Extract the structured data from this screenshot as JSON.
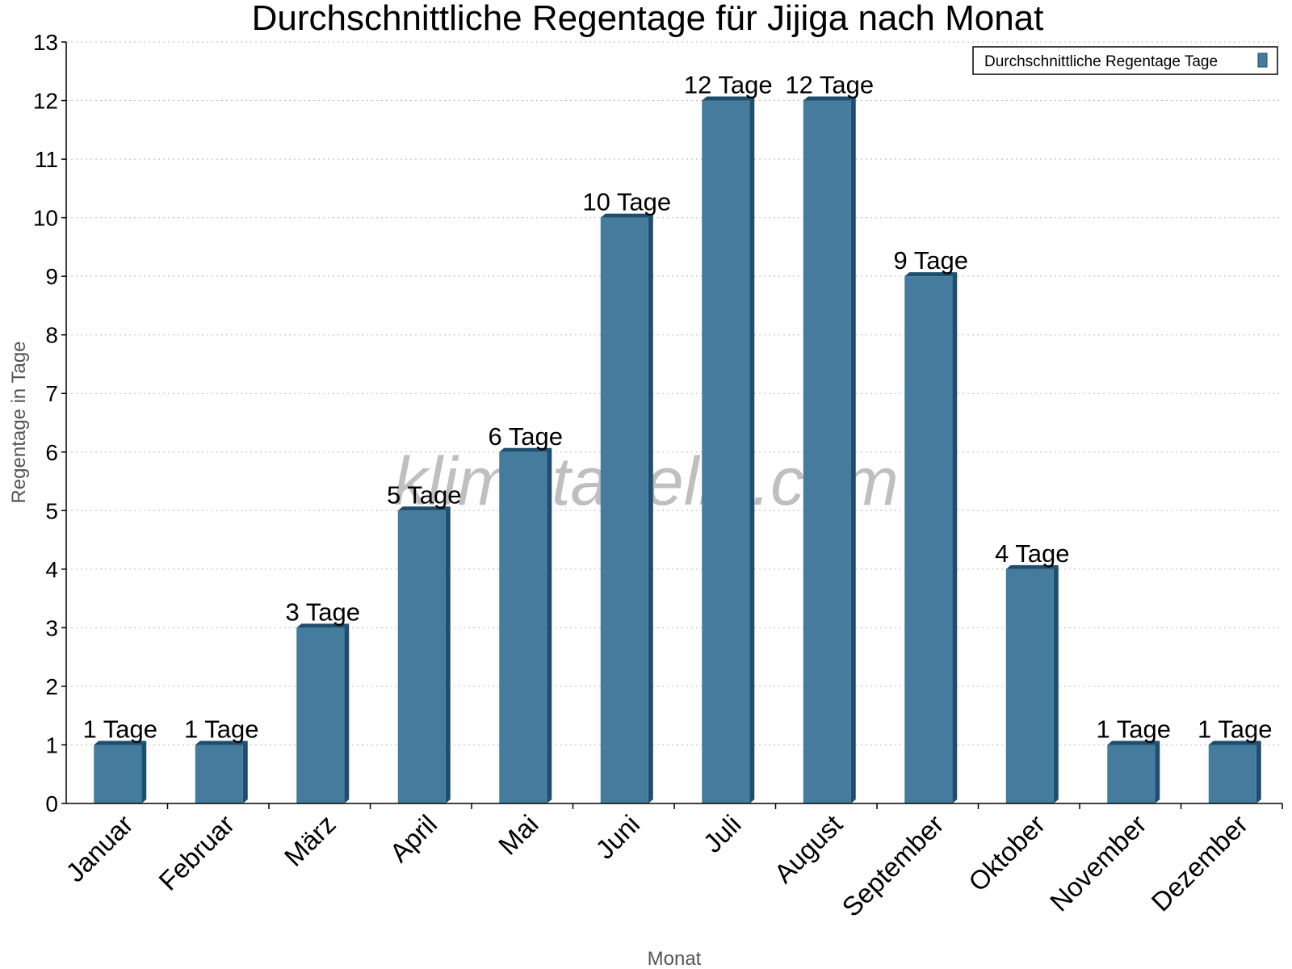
{
  "chart_data": {
    "type": "bar",
    "title": "Durchschnittliche Regentage für Jijiga nach Monat",
    "xlabel": "Monat",
    "ylabel": "Regentage in Tage",
    "categories": [
      "Januar",
      "Februar",
      "März",
      "April",
      "Mai",
      "Juni",
      "Juli",
      "August",
      "September",
      "Oktober",
      "November",
      "Dezember"
    ],
    "series": [
      {
        "name": "Durchschnittliche Regentage Tage",
        "values": [
          1,
          1,
          3,
          5,
          6,
          10,
          12,
          12,
          9,
          4,
          1,
          1
        ],
        "color": "#457b9d",
        "side_color": "#1d4e6e"
      }
    ],
    "data_labels": [
      "1 Tage",
      "1 Tage",
      "3 Tage",
      "5 Tage",
      "6 Tage",
      "10 Tage",
      "12 Tage",
      "12 Tage",
      "9 Tage",
      "4 Tage",
      "1 Tage",
      "1 Tage"
    ],
    "ylim": [
      0,
      13
    ],
    "yticks": [
      0,
      1,
      2,
      3,
      4,
      5,
      6,
      7,
      8,
      9,
      10,
      11,
      12,
      13
    ],
    "grid": true,
    "legend_position": "top-right",
    "watermark": "klimatabelle.com"
  }
}
